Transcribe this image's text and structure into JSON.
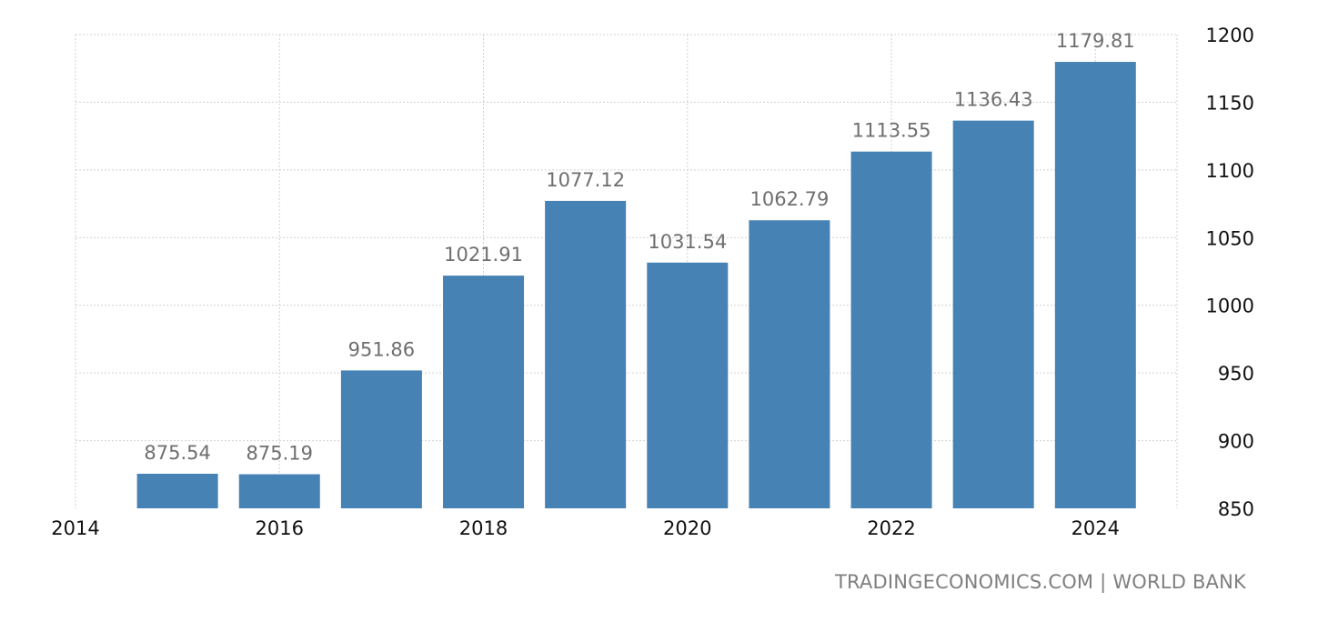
{
  "source": {
    "site": "TRADINGECONOMICS.COM",
    "separator": "|",
    "provider": "WORLD BANK"
  },
  "colors": {
    "bar": "#4682b4",
    "data_label": "#6e6e6e",
    "tick_label": "#111111",
    "grid": "#d0d0d0",
    "source_text": "#7f7f7f"
  },
  "chart_data": {
    "type": "bar",
    "title": "",
    "xlabel": "",
    "ylabel": "",
    "x": [
      2015,
      2016,
      2017,
      2018,
      2019,
      2020,
      2021,
      2022,
      2023,
      2024
    ],
    "values": [
      875.54,
      875.19,
      951.86,
      1021.91,
      1077.12,
      1031.54,
      1062.79,
      1113.55,
      1136.43,
      1179.81
    ],
    "data_labels": [
      "875.54",
      "875.19",
      "951.86",
      "1021.91",
      "1077.12",
      "1031.54",
      "1062.79",
      "1113.55",
      "1136.43",
      "1179.81"
    ],
    "xlim": [
      2014,
      2024.8
    ],
    "ylim": [
      850,
      1200
    ],
    "x_ticks": [
      2014,
      2016,
      2018,
      2020,
      2022,
      2024
    ],
    "x_tick_labels": [
      "2014",
      "2016",
      "2018",
      "2020",
      "2022",
      "2024"
    ],
    "y_ticks": [
      850,
      900,
      950,
      1000,
      1050,
      1100,
      1150,
      1200
    ],
    "y_tick_labels": [
      "850",
      "900",
      "950",
      "1000",
      "1050",
      "1100",
      "1150",
      "1200"
    ],
    "y_axis_side": "right",
    "grid": true,
    "legend": "none"
  }
}
